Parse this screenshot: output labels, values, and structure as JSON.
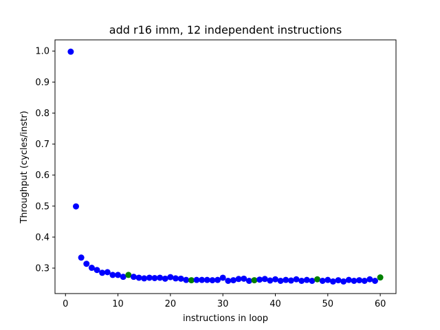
{
  "chart_data": {
    "type": "scatter",
    "title": "add r16 imm, 12 independent instructions",
    "xlabel": "instructions in loop",
    "ylabel": "Throughput (cycles/instr)",
    "xlim": [
      -2.0,
      63.0
    ],
    "ylim": [
      0.218,
      1.036
    ],
    "xticks": [
      0,
      10,
      20,
      30,
      40,
      50,
      60
    ],
    "yticks": [
      0.3,
      0.4,
      0.5,
      0.6,
      0.7,
      0.8,
      0.9,
      1.0
    ],
    "xtick_labels": [
      "0",
      "10",
      "20",
      "30",
      "40",
      "50",
      "60"
    ],
    "ytick_labels": [
      "0.3",
      "0.4",
      "0.5",
      "0.6",
      "0.7",
      "0.8",
      "0.9",
      "1.0"
    ],
    "grid": false,
    "colors": {
      "blue": "#0000ff",
      "green": "#008000"
    },
    "x": [
      1,
      2,
      3,
      4,
      5,
      6,
      7,
      8,
      9,
      10,
      11,
      12,
      13,
      14,
      15,
      16,
      17,
      18,
      19,
      20,
      21,
      22,
      23,
      24,
      25,
      26,
      27,
      28,
      29,
      30,
      31,
      32,
      33,
      34,
      35,
      36,
      37,
      38,
      39,
      40,
      41,
      42,
      43,
      44,
      45,
      46,
      47,
      48,
      49,
      50,
      51,
      52,
      53,
      54,
      55,
      56,
      57,
      58,
      59,
      60
    ],
    "y": [
      0.998,
      0.499,
      0.334,
      0.314,
      0.301,
      0.294,
      0.285,
      0.287,
      0.278,
      0.278,
      0.272,
      0.278,
      0.272,
      0.269,
      0.267,
      0.269,
      0.268,
      0.269,
      0.266,
      0.271,
      0.267,
      0.266,
      0.262,
      0.261,
      0.262,
      0.262,
      0.262,
      0.261,
      0.262,
      0.269,
      0.259,
      0.261,
      0.265,
      0.266,
      0.259,
      0.261,
      0.263,
      0.265,
      0.26,
      0.264,
      0.259,
      0.262,
      0.26,
      0.264,
      0.259,
      0.262,
      0.259,
      0.264,
      0.259,
      0.262,
      0.257,
      0.261,
      0.257,
      0.262,
      0.259,
      0.261,
      0.259,
      0.264,
      0.259,
      0.27
    ],
    "point_colors": [
      "blue",
      "blue",
      "blue",
      "blue",
      "blue",
      "blue",
      "blue",
      "blue",
      "blue",
      "blue",
      "blue",
      "green",
      "blue",
      "blue",
      "blue",
      "blue",
      "blue",
      "blue",
      "blue",
      "blue",
      "blue",
      "blue",
      "blue",
      "green",
      "blue",
      "blue",
      "blue",
      "blue",
      "blue",
      "blue",
      "blue",
      "blue",
      "blue",
      "blue",
      "blue",
      "green",
      "blue",
      "blue",
      "blue",
      "blue",
      "blue",
      "blue",
      "blue",
      "blue",
      "blue",
      "blue",
      "blue",
      "green",
      "blue",
      "blue",
      "blue",
      "blue",
      "blue",
      "blue",
      "blue",
      "blue",
      "blue",
      "blue",
      "blue",
      "green"
    ]
  }
}
